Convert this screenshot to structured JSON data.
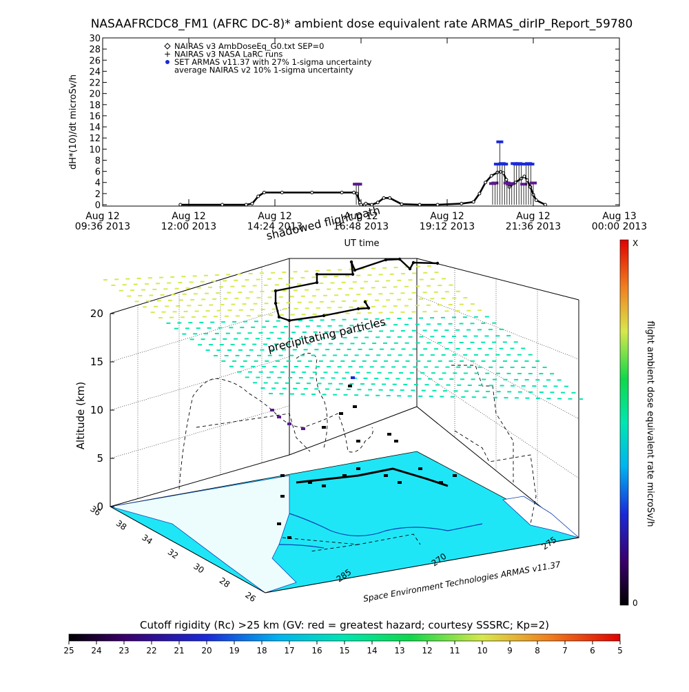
{
  "title": "NASAAFRCDC8_FM1 (AFRC DC-8)* ambient dose equivalent rate ARMAS_dirIP_Report_59780",
  "colors": {
    "axis": "#000000",
    "armas": "#1a2ad8",
    "armas_low": "#5a1a8c",
    "ground": "#1fe6f6",
    "land_white": "#ffffff",
    "grid_cyan": "#00e5b0",
    "grid_yellow": "#d8e84a"
  },
  "chart_data": [
    {
      "type": "line",
      "name": "top-timeseries",
      "ylabel": "dH*(10)/dt microSv/h",
      "xlabel": "UT time",
      "ylim": [
        0,
        30
      ],
      "yticks": [
        0,
        2,
        4,
        6,
        8,
        10,
        12,
        14,
        16,
        18,
        20,
        22,
        24,
        26,
        28,
        30
      ],
      "xticks": [
        {
          "t": 0,
          "line1": "Aug 12",
          "line2": "09:36 2013"
        },
        {
          "t": 144,
          "line1": "Aug 12",
          "line2": "12:00 2013"
        },
        {
          "t": 288,
          "line1": "Aug 12",
          "line2": "14:24 2013"
        },
        {
          "t": 432,
          "line1": "Aug 12",
          "line2": "16:48 2013"
        },
        {
          "t": 576,
          "line1": "Aug 12",
          "line2": "19:12 2013"
        },
        {
          "t": 720,
          "line1": "Aug 12",
          "line2": "21:36 2013"
        },
        {
          "t": 864,
          "line1": "Aug 13",
          "line2": "00:00 2013"
        }
      ],
      "xlim": [
        0,
        864
      ],
      "legend_position": "top-left",
      "legend": [
        {
          "symbol": "diamond",
          "label": "NAIRAS v3 AmbDoseEq_G0.txt SEP=0"
        },
        {
          "symbol": "plus",
          "label": "NAIRAS v3 NASA LaRC runs"
        },
        {
          "symbol": "dot-blue",
          "label": "SET ARMAS v11.37 with 27% 1-sigma uncertainty"
        },
        {
          "symbol": "none",
          "label": "average NAIRAS v2 10% 1-sigma uncertainty"
        }
      ],
      "series": [
        {
          "name": "NAIRAS v3 AmbDoseEq_G0.txt SEP=0",
          "x": [
            130,
            200,
            240,
            250,
            260,
            270,
            300,
            350,
            400,
            420,
            425,
            430,
            432,
            438,
            440,
            450,
            460,
            470,
            480,
            500,
            530,
            560,
            600,
            620,
            630,
            640,
            650,
            660,
            665,
            670,
            675,
            680,
            690,
            700,
            705,
            710,
            715,
            720,
            725,
            740
          ],
          "y": [
            0,
            0,
            0,
            0.2,
            1.5,
            2.2,
            2.2,
            2.2,
            2.2,
            2.2,
            2.0,
            0.4,
            0,
            0,
            0.2,
            0,
            0.4,
            1.2,
            1.2,
            0.1,
            0,
            0,
            0.2,
            0.5,
            2,
            4,
            5.2,
            5.8,
            5.9,
            5.7,
            4.5,
            3.2,
            4.0,
            4.7,
            5.1,
            4.4,
            3.2,
            1.8,
            0.8,
            0
          ]
        },
        {
          "name": "SET ARMAS v11.37 with 27% 1-sigma uncertainty",
          "x": [
            424,
            428,
            652,
            656,
            660,
            664,
            668,
            672,
            676,
            680,
            684,
            688,
            692,
            696,
            700,
            704,
            708,
            712,
            716,
            720
          ],
          "y": [
            3.7,
            3.7,
            3.8,
            3.9,
            7.3,
            11.3,
            7.4,
            7.3,
            3.9,
            3.7,
            3.8,
            7.4,
            7.3,
            7.4,
            7.3,
            3.7,
            7.3,
            7.4,
            7.3,
            3.9
          ]
        }
      ]
    },
    {
      "type": "scatter",
      "name": "3d-flight-path",
      "zlabel": "Altitude (km)",
      "zticks": [
        0,
        5,
        10,
        15,
        20
      ],
      "lat_ticks": [
        "36",
        "38",
        "34",
        "32",
        "30",
        "28",
        "26"
      ],
      "lon_ticks": [
        "285",
        "270",
        "275"
      ],
      "colorbar_label": "flight ambient dose equivalent rate microSv/h",
      "colorbar_top": "X",
      "colorbar_bottom": "0",
      "annotations": [
        "precipitating particles",
        "shadowed flight path"
      ],
      "credit": "Space Environment Technologies ARMAS v11.37"
    }
  ],
  "bottom_colorbar": {
    "label": "Cutoff rigidity (Rc) >25 km (GV: red = greatest hazard; courtesy SSSRC; Kp=2)",
    "ticks": [
      "25",
      "24",
      "23",
      "22",
      "21",
      "20",
      "19",
      "18",
      "17",
      "16",
      "15",
      "14",
      "13",
      "12",
      "11",
      "10",
      "9",
      "8",
      "7",
      "6",
      "5"
    ]
  }
}
